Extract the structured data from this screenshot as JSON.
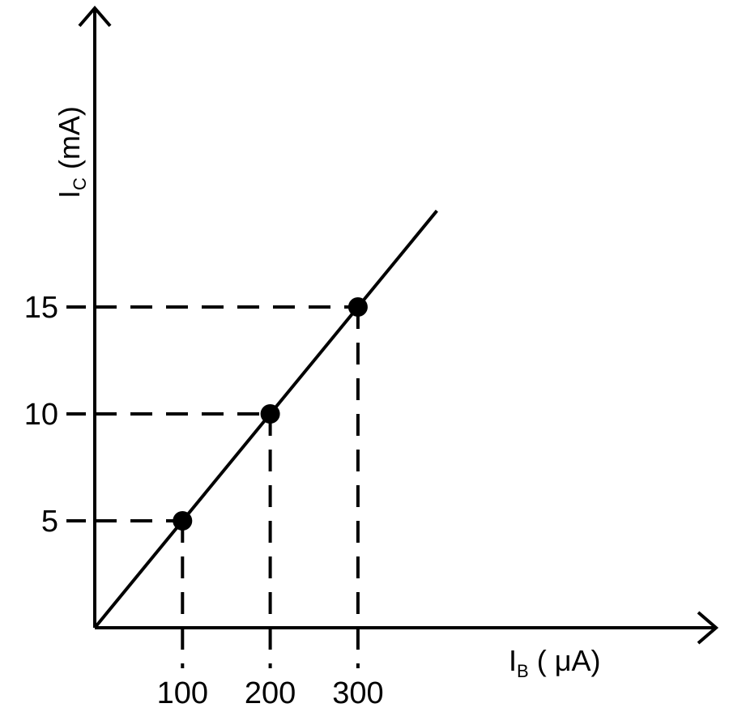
{
  "chart_data": {
    "type": "line",
    "xlabel": {
      "main": "I",
      "sub": "B",
      "unit": " ( μA)"
    },
    "ylabel": {
      "main": "I",
      "sub": "C",
      "unit": " (mA)"
    },
    "x_ticks": [
      "100",
      "200",
      "300"
    ],
    "y_ticks": [
      "5",
      "10",
      "15"
    ],
    "x_tick_values": [
      100,
      200,
      300
    ],
    "y_tick_values": [
      5,
      10,
      15
    ],
    "series": [
      {
        "points": [
          {
            "x": 0,
            "y": 0
          },
          {
            "x": 100,
            "y": 5
          },
          {
            "x": 200,
            "y": 10
          },
          {
            "x": 300,
            "y": 15
          }
        ],
        "line_end": {
          "x": 390,
          "y": 19.5
        }
      }
    ],
    "reference_lines": "dashed",
    "grid": false
  }
}
